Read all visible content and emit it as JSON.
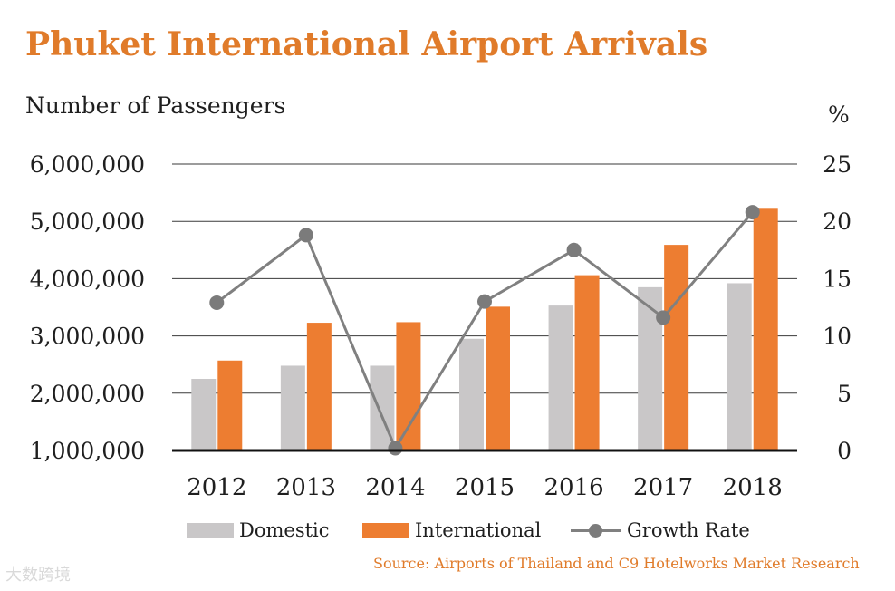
{
  "title": "Phuket International Airport Arrivals",
  "source": "Source: Airports of Thailand and C9 Hotelworks Market Research",
  "watermark": "大数跨境",
  "colors": {
    "title": "#e07b2a",
    "domestic": "#c9c7c8",
    "international": "#ed7d31",
    "growth": "#7b7b7b"
  },
  "chart_data": {
    "type": "bar",
    "categories": [
      "2012",
      "2013",
      "2014",
      "2015",
      "2016",
      "2017",
      "2018"
    ],
    "series": [
      {
        "name": "Domestic",
        "type": "bar",
        "axis": "left",
        "values": [
          2250000,
          2480000,
          2480000,
          2950000,
          3530000,
          3850000,
          3920000
        ]
      },
      {
        "name": "International",
        "type": "bar",
        "axis": "left",
        "values": [
          2570000,
          3230000,
          3240000,
          3510000,
          4060000,
          4590000,
          5220000
        ]
      },
      {
        "name": "Growth Rate",
        "type": "line",
        "axis": "right",
        "values": [
          12.9,
          18.8,
          0.2,
          13.0,
          17.5,
          11.6,
          20.8
        ]
      }
    ],
    "ylabel": "Number of Passengers",
    "y2label": "%",
    "ylim": [
      1000000,
      6000000
    ],
    "y2lim": [
      0,
      25
    ],
    "yticks": [
      "1,000,000",
      "2,000,000",
      "3,000,000",
      "4,000,000",
      "5,000,000",
      "6,000,000"
    ],
    "y2ticks": [
      "0",
      "5",
      "10",
      "15",
      "20",
      "25"
    ],
    "grid": true,
    "legend_position": "bottom"
  }
}
